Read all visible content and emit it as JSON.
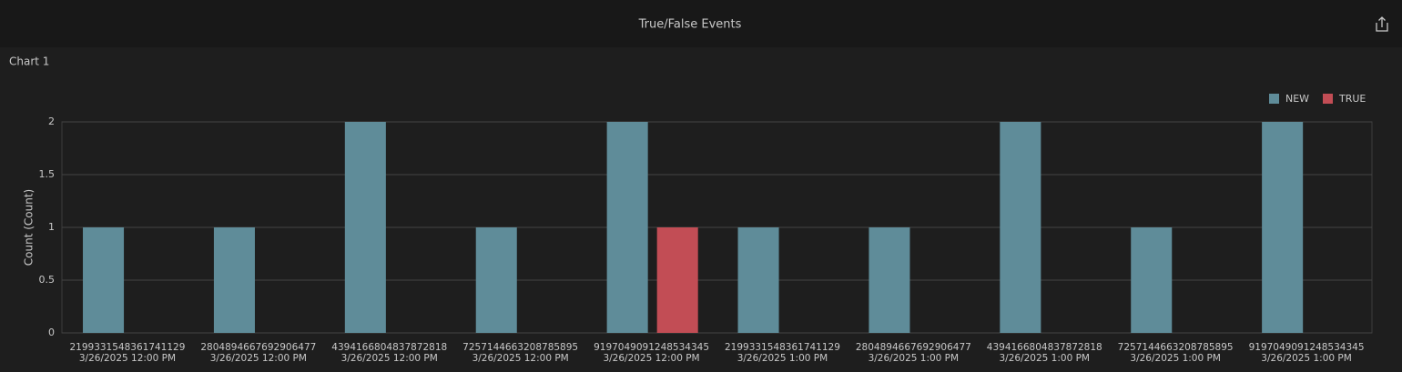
{
  "header": {
    "title": "True/False Events"
  },
  "chart_data": {
    "type": "bar",
    "title": "Chart 1",
    "ylabel": "Count (Count)",
    "categories": [
      [
        "2199331548361741129",
        "3/26/2025 12:00 PM"
      ],
      [
        "2804894667692906477",
        "3/26/2025 12:00 PM"
      ],
      [
        "4394166804837872818",
        "3/26/2025 12:00 PM"
      ],
      [
        "7257144663208785895",
        "3/26/2025 12:00 PM"
      ],
      [
        "9197049091248534345",
        "3/26/2025 12:00 PM"
      ],
      [
        "2199331548361741129",
        "3/26/2025 1:00 PM"
      ],
      [
        "2804894667692906477",
        "3/26/2025 1:00 PM"
      ],
      [
        "4394166804837872818",
        "3/26/2025 1:00 PM"
      ],
      [
        "7257144663208785895",
        "3/26/2025 1:00 PM"
      ],
      [
        "9197049091248534345",
        "3/26/2025 1:00 PM"
      ]
    ],
    "series": [
      {
        "name": "NEW",
        "color": "#5f8c99",
        "values": [
          1,
          1,
          2,
          1,
          2,
          1,
          1,
          2,
          1,
          2
        ]
      },
      {
        "name": "TRUE",
        "color": "#c24d55",
        "values": [
          0,
          0,
          0,
          0,
          1,
          0,
          0,
          0,
          0,
          0
        ]
      }
    ],
    "ylim": [
      0,
      2
    ],
    "yticks": [
      0,
      0.5,
      1,
      1.5,
      2
    ],
    "grid": true,
    "legend": "top-right"
  }
}
